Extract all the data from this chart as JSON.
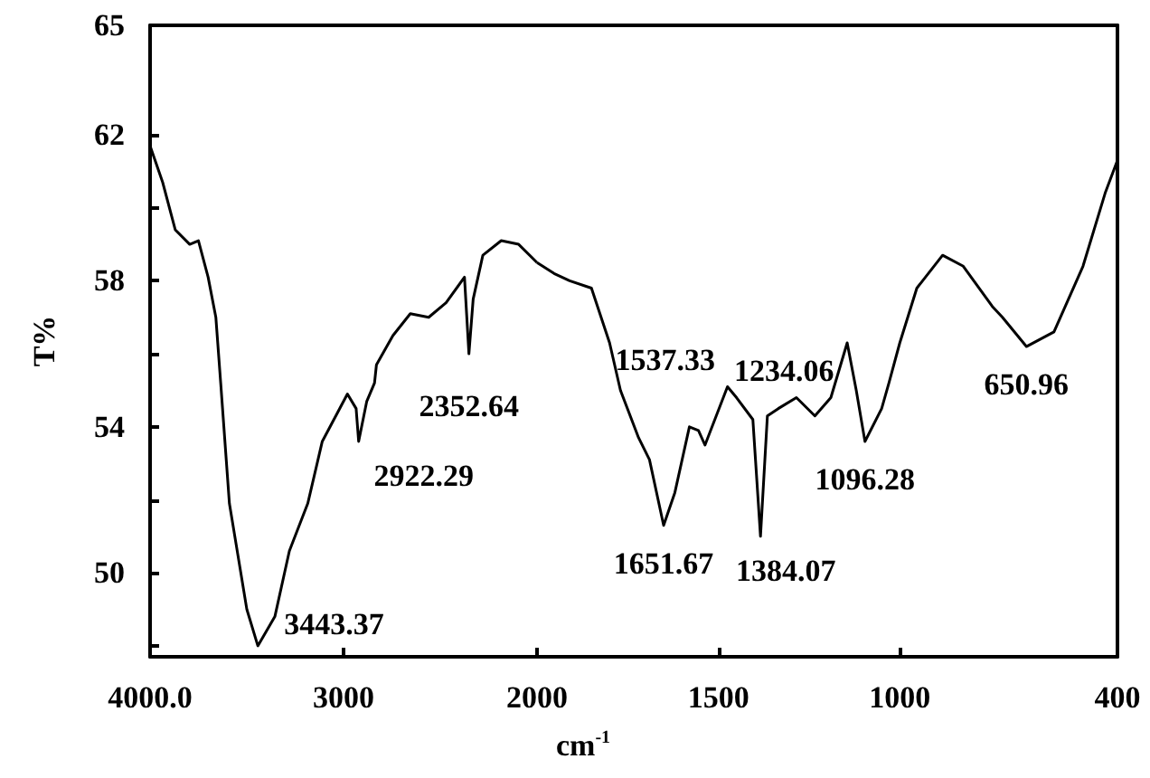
{
  "chart_data": [
    {
      "type": "line",
      "ylabel": "T%",
      "color": "#000000",
      "x": [
        4000,
        3935,
        3870,
        3795,
        3750,
        3700,
        3660,
        3635,
        3590,
        3500,
        3443,
        3355,
        3280,
        3185,
        3110,
        2980,
        2935,
        2922,
        2880,
        2840,
        2830,
        2745,
        2655,
        2560,
        2470,
        2375,
        2352,
        2330,
        2280,
        2185,
        2095,
        2000
      ],
      "values": [
        61.7,
        60.7,
        59.4,
        59.0,
        59.1,
        58.1,
        57.0,
        55.2,
        51.9,
        49.0,
        48.0,
        48.8,
        50.6,
        51.9,
        53.6,
        54.9,
        54.5,
        53.6,
        54.7,
        55.2,
        55.7,
        56.5,
        57.1,
        57.0,
        57.4,
        58.1,
        56.0,
        57.5,
        58.7,
        59.1,
        59.0,
        58.5
      ],
      "xlim": [
        4000,
        2000
      ],
      "xticks": [
        {
          "value": 4000,
          "label": "4000.0"
        },
        3000
      ],
      "ylim": [
        47.7,
        65
      ],
      "yticks": [
        {
          "value": 48,
          "label": null
        },
        50,
        {
          "value": 52,
          "label": null
        },
        54,
        {
          "value": 56,
          "label": null
        },
        58,
        {
          "value": 60,
          "label": null
        },
        62,
        65
      ],
      "annotations": [
        {
          "text": "3443.37",
          "x": 3443,
          "y": 48.0
        },
        {
          "text": "2922.29",
          "x": 2922,
          "y": 53.6
        },
        {
          "text": "2352.64",
          "x": 2352,
          "y": 56.0
        }
      ]
    },
    {
      "type": "line",
      "xlabel": "cm$^{-1}$",
      "color": "#000000",
      "x": [
        2000,
        1953,
        1910,
        1850,
        1800,
        1770,
        1720,
        1690,
        1651,
        1620,
        1580,
        1555,
        1537,
        1475,
        1450,
        1405,
        1384,
        1365,
        1335,
        1285,
        1234,
        1190,
        1145,
        1120,
        1096,
        1050,
        1030,
        1000,
        953,
        882,
        825,
        745,
        717,
        651,
        575,
        495,
        434,
        400
      ],
      "values": [
        58.5,
        58.2,
        58.0,
        57.8,
        56.3,
        55.0,
        53.7,
        53.1,
        51.3,
        52.2,
        54.0,
        53.9,
        53.5,
        55.1,
        54.8,
        54.2,
        51.0,
        54.3,
        54.5,
        54.8,
        54.3,
        54.8,
        56.3,
        55.0,
        53.6,
        54.5,
        55.2,
        56.3,
        57.8,
        58.7,
        58.4,
        57.3,
        57.0,
        56.2,
        56.6,
        58.4,
        60.4,
        61.3
      ],
      "xlim": [
        2000,
        400
      ],
      "xticks": [
        2000,
        1500,
        1000,
        400
      ],
      "ylim": [
        47.7,
        65
      ],
      "tick_labels": "x",
      "annotations": [
        {
          "text": "1651.67",
          "x": 1651,
          "y": 51.3
        },
        {
          "text": "1537.33",
          "x": 1537,
          "y": 53.5
        },
        {
          "text": "1384.07",
          "x": 1384,
          "y": 51.0
        },
        {
          "text": "1234.06",
          "x": 1234,
          "y": 54.3
        },
        {
          "text": "1096.28",
          "x": 1096,
          "y": 53.6
        },
        {
          "text": "650.96",
          "x": 651,
          "y": 56.2
        }
      ]
    }
  ]
}
